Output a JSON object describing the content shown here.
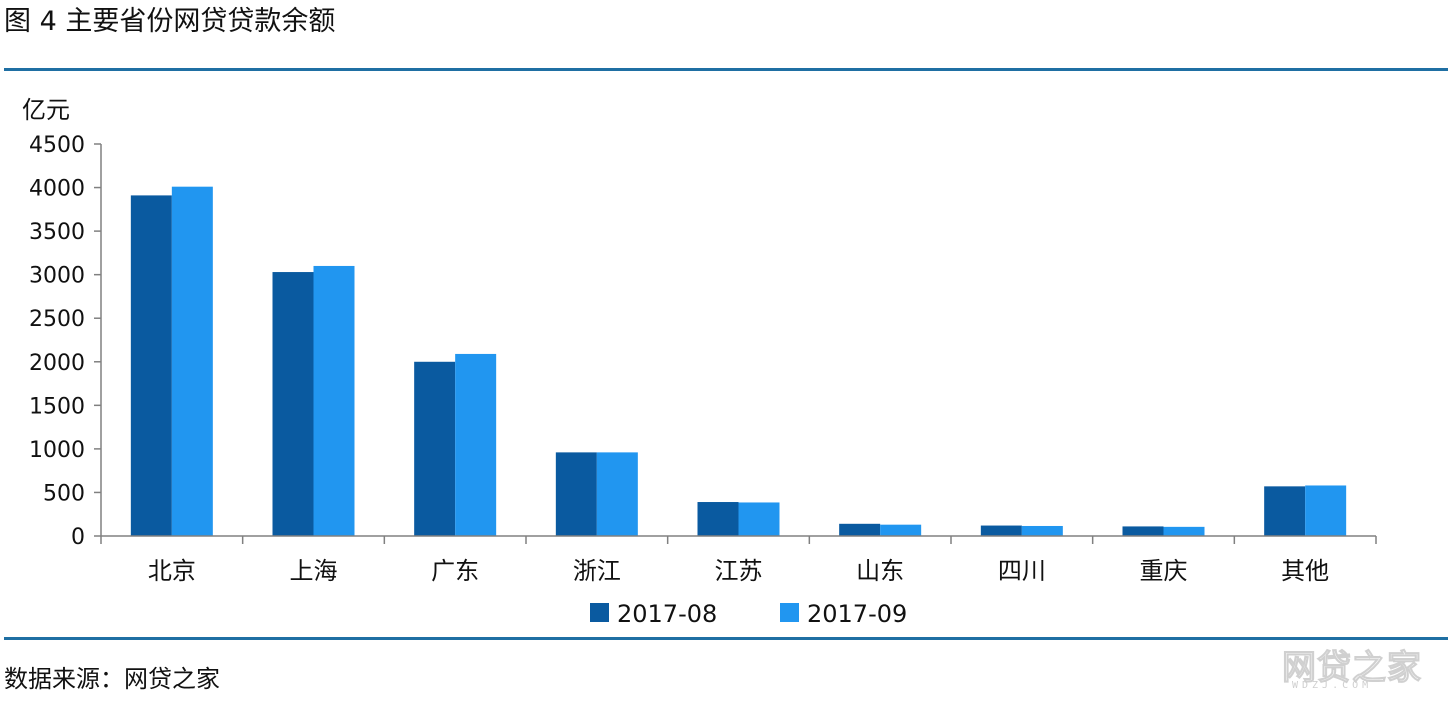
{
  "figure": {
    "title": "图 4  主要省份网贷贷款余额",
    "source": "数据来源：网贷之家"
  },
  "watermark": {
    "text": "网贷之家",
    "sub": "WDZJ.COM"
  },
  "colors": {
    "rule": "#1f6fa3",
    "series_aug": "#0a5aa0",
    "series_sep": "#2196f0",
    "axis": "#808080"
  },
  "chart_data": {
    "type": "bar",
    "ylabel": "亿元",
    "ylim": [
      0,
      4500
    ],
    "yticks": [
      "0",
      "500",
      "1000",
      "1500",
      "2000",
      "2500",
      "3000",
      "3500",
      "4000",
      "4500"
    ],
    "categories": [
      "北京",
      "上海",
      "广东",
      "浙江",
      "江苏",
      "山东",
      "四川",
      "重庆",
      "其他"
    ],
    "series": [
      {
        "name": "2017-08",
        "values": [
          3910,
          3030,
          2000,
          960,
          390,
          140,
          120,
          110,
          570
        ]
      },
      {
        "name": "2017-09",
        "values": [
          4010,
          3100,
          2090,
          960,
          385,
          130,
          115,
          105,
          580
        ]
      }
    ],
    "legend": "bottom-center",
    "grid": false
  }
}
